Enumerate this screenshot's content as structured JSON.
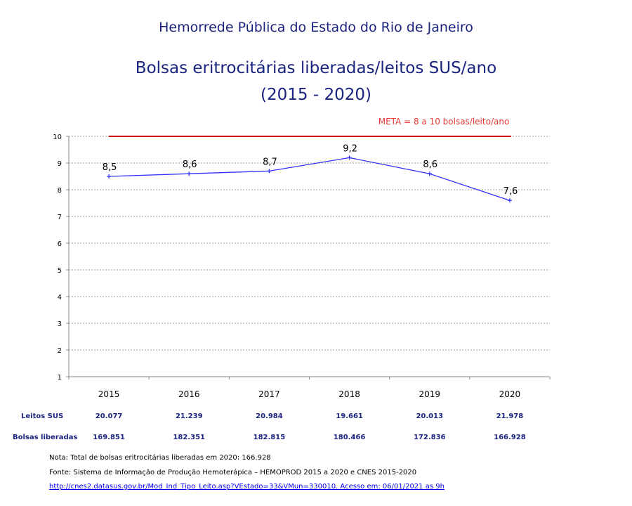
{
  "header": {
    "org_title": "Hemorrede Pública do Estado do Rio de Janeiro",
    "chart_title": "Bolsas eritrocitárias liberadas/leitos SUS/ano",
    "period": "(2015  - 2020)"
  },
  "chart_data": {
    "type": "line",
    "categories": [
      "2015",
      "2016",
      "2017",
      "2018",
      "2019",
      "2020"
    ],
    "series": [
      {
        "values": [
          8.5,
          8.6,
          8.7,
          9.2,
          8.6,
          7.6
        ],
        "labels": [
          "8,5",
          "8,6",
          "8,7",
          "9,2",
          "8,6",
          "7,6"
        ],
        "color": "#3333ff"
      }
    ],
    "ylim": [
      1,
      10
    ],
    "yticks": [
      "1",
      "2",
      "3",
      "4",
      "5",
      "6",
      "7",
      "8",
      "9",
      "10"
    ],
    "grid": true,
    "target_line": {
      "value": 10,
      "label": "META = 8 a 10 bolsas/leito/ano",
      "color": "#cc0000"
    }
  },
  "table": {
    "rows": [
      {
        "label": "Leitos SUS",
        "values": [
          "20.077",
          "21.239",
          "20.984",
          "19.661",
          "20.013",
          "21.978"
        ]
      },
      {
        "label": "Bolsas liberadas",
        "values": [
          "169.851",
          "182.351",
          "182.815",
          "180.466",
          "172.836",
          "166.928"
        ]
      }
    ]
  },
  "notes": {
    "note": "Nota: Total de bolsas eritrocitárias liberadas em 2020: 166.928",
    "source": "Fonte: Sistema de Informação de Produção Hemoterápica – HEMOPROD 2015 a 2020 e CNES 2015-2020",
    "link": "http://cnes2.datasus.gov.br/Mod_Ind_Tipo_Leito.asp?VEstado=33&VMun=330010. Acesso em: 06/01/2021 as 9h"
  }
}
